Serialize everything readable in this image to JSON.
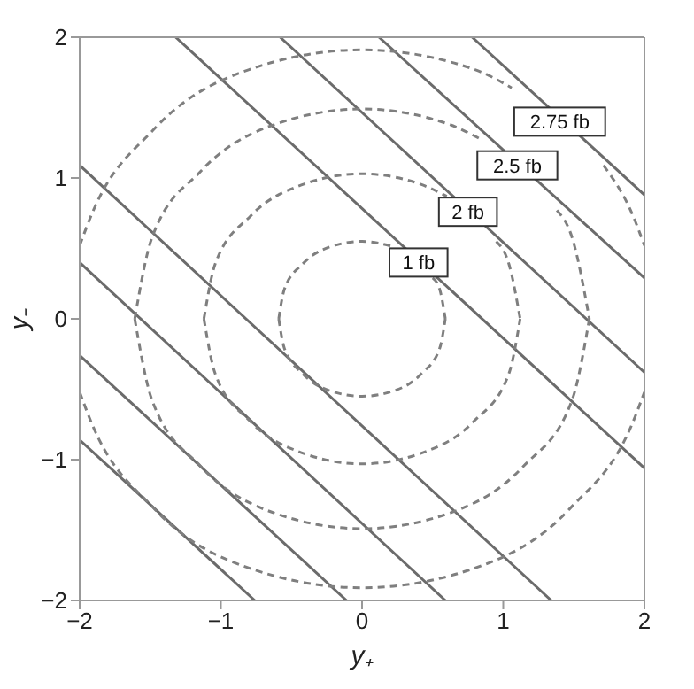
{
  "chart_data": {
    "type": "line",
    "xlabel": "y₊",
    "ylabel": "y₋",
    "xlim": [
      -2,
      2
    ],
    "ylim": [
      -2,
      2
    ],
    "xticks": [
      -2,
      -1,
      0,
      1,
      2
    ],
    "yticks": [
      -2,
      -1,
      0,
      1,
      2
    ],
    "marker": "none",
    "series": [
      {
        "color": "#6b6b6b",
        "line_style": "solid",
        "x": [
          -1.32,
          2
        ],
        "values": [
          2,
          -1.06
        ]
      },
      {
        "color": "#6b6b6b",
        "line_style": "solid",
        "x": [
          -0.58,
          2
        ],
        "values": [
          2,
          -0.38
        ]
      },
      {
        "color": "#6b6b6b",
        "line_style": "solid",
        "x": [
          0.12,
          2
        ],
        "values": [
          2,
          0.29
        ]
      },
      {
        "color": "#6b6b6b",
        "line_style": "solid",
        "x": [
          0.78,
          2
        ],
        "values": [
          2,
          0.88
        ]
      },
      {
        "color": "#6b6b6b",
        "line_style": "solid",
        "x": [
          -2,
          1.34
        ],
        "values": [
          1.09,
          -2
        ]
      },
      {
        "color": "#6b6b6b",
        "line_style": "solid",
        "x": [
          -2,
          0.59
        ],
        "values": [
          0.4,
          -2
        ]
      },
      {
        "color": "#6b6b6b",
        "line_style": "solid",
        "x": [
          -2,
          -0.11
        ],
        "values": [
          -0.26,
          -2
        ]
      },
      {
        "color": "#6b6b6b",
        "line_style": "solid",
        "x": [
          -2,
          -0.76
        ],
        "values": [
          -0.86,
          -2
        ]
      },
      {
        "color": "#7f7f7f",
        "line_style": "dashed",
        "x": [
          -0.59,
          -0.55,
          -0.42,
          -0.23,
          0,
          0.23,
          0.42,
          0.5,
          0.55,
          0.59
        ],
        "values": [
          0,
          0.21,
          0.39,
          0.51,
          0.55,
          0.51,
          null,
          0.29,
          0.21,
          0
        ]
      },
      {
        "color": "#7f7f7f",
        "line_style": "dashed",
        "x": [
          -0.59,
          -0.55,
          -0.42,
          -0.23,
          0,
          0.23,
          0.42,
          0.55,
          0.59
        ],
        "values": [
          0,
          -0.21,
          -0.39,
          -0.51,
          -0.55,
          -0.51,
          -0.39,
          -0.21,
          0
        ]
      },
      {
        "color": "#7f7f7f",
        "line_style": "dashed",
        "x": [
          -1.12,
          -1.04,
          -0.79,
          -0.43,
          0,
          0.43,
          0.6,
          0.79,
          0.95,
          1.04,
          1.12
        ],
        "values": [
          0,
          0.39,
          0.73,
          0.95,
          1.03,
          0.95,
          0.87,
          null,
          0.55,
          0.39,
          0
        ]
      },
      {
        "color": "#7f7f7f",
        "line_style": "dashed",
        "x": [
          -1.12,
          -1.04,
          -0.79,
          -0.43,
          0,
          0.43,
          0.79,
          1.04,
          1.12
        ],
        "values": [
          0,
          -0.39,
          -0.73,
          -0.95,
          -1.03,
          -0.95,
          -0.73,
          -0.39,
          0
        ]
      },
      {
        "color": "#7f7f7f",
        "line_style": "dashed",
        "x": [
          -1.61,
          -1.49,
          -1.14,
          -0.62,
          0,
          0.62,
          0.85,
          1.14,
          1.38,
          1.49,
          1.61
        ],
        "values": [
          0,
          0.57,
          1.05,
          1.38,
          1.49,
          1.38,
          1.27,
          null,
          0.77,
          0.57,
          0
        ]
      },
      {
        "color": "#7f7f7f",
        "line_style": "dashed",
        "x": [
          -1.61,
          -1.49,
          -1.14,
          -0.62,
          0,
          0.62,
          1.14,
          1.49,
          1.61
        ],
        "values": [
          0,
          -0.57,
          -1.05,
          -1.38,
          -1.49,
          -1.38,
          -1.05,
          -0.57,
          0
        ]
      },
      {
        "color": "#7f7f7f",
        "line_style": "dashed",
        "x": [
          -2,
          -1.92,
          -1.47,
          -0.8,
          0,
          0.8,
          1.06,
          1.47,
          1.71,
          1.92,
          2
        ],
        "values": [
          0.52,
          0.73,
          1.35,
          1.77,
          1.91,
          1.77,
          1.64,
          null,
          1.09,
          0.73,
          0.52
        ]
      },
      {
        "color": "#7f7f7f",
        "line_style": "dashed",
        "x": [
          -2,
          -1.92,
          -1.47,
          -0.8,
          0,
          0.8,
          1.47,
          1.92,
          2
        ],
        "values": [
          -0.52,
          -0.73,
          -1.35,
          -1.77,
          -1.91,
          -1.77,
          -1.35,
          -0.73,
          -0.52
        ]
      }
    ],
    "annotations": [
      {
        "text": "1 fb",
        "x": 0.4,
        "y": 0.4
      },
      {
        "text": "2 fb",
        "x": 0.75,
        "y": 0.76
      },
      {
        "text": "2.5 fb",
        "x": 1.1,
        "y": 1.09
      },
      {
        "text": "2.75 fb",
        "x": 1.4,
        "y": 1.4
      }
    ]
  }
}
